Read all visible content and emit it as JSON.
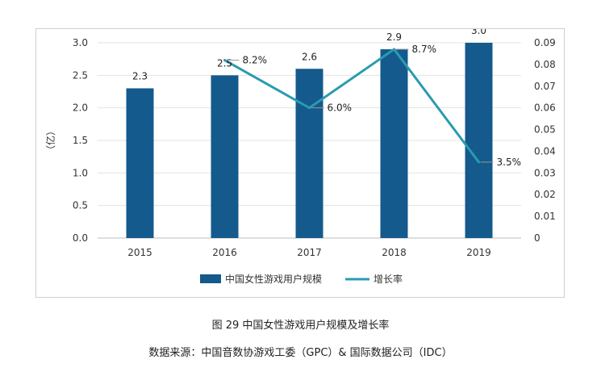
{
  "chart_data": {
    "type": "bar",
    "categories": [
      "2015",
      "2016",
      "2017",
      "2018",
      "2019"
    ],
    "series": [
      {
        "name": "中国女性游戏用户规模",
        "type": "bar",
        "axis": "left",
        "values": [
          2.3,
          2.5,
          2.6,
          2.9,
          3.0
        ],
        "labels": [
          "2.3",
          "2.5",
          "2.6",
          "2.9",
          "3.0"
        ],
        "color": "#145a8c"
      },
      {
        "name": "增长率",
        "type": "line",
        "axis": "right",
        "values": [
          null,
          0.082,
          0.06,
          0.087,
          0.035
        ],
        "labels": [
          "",
          "8.2%",
          "6.0%",
          "8.7%",
          "3.5%"
        ],
        "color": "#2a9bb0"
      }
    ],
    "ylabel": "（亿）",
    "ylim": [
      0,
      3.0
    ],
    "yticks": [
      "0.0",
      "0.5",
      "1.0",
      "1.5",
      "2.0",
      "2.5",
      "3.0"
    ],
    "y2lim": [
      0,
      0.09
    ],
    "y2ticks": [
      "0",
      "0.01",
      "0.02",
      "0.03",
      "0.04",
      "0.05",
      "0.06",
      "0.07",
      "0.08",
      "0.09"
    ],
    "grid": true,
    "legend": "bottom"
  },
  "caption": "图 29  中国女性游戏用户规模及增长率",
  "source": "数据来源：中国音数协游戏工委（GPC）& 国际数据公司（IDC）"
}
